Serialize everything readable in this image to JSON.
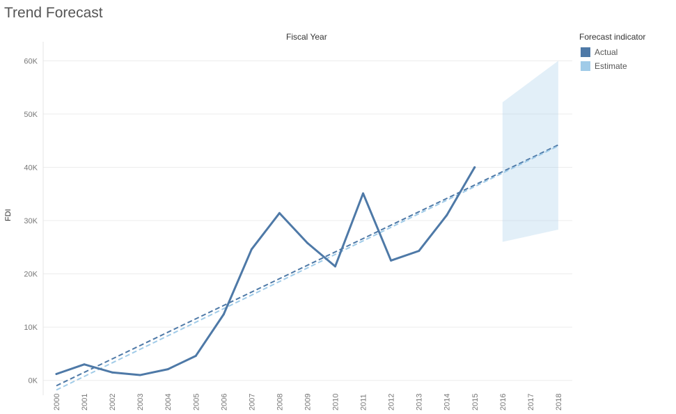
{
  "title": "Trend Forecast",
  "chart_data": {
    "type": "line",
    "header": "Fiscal Year",
    "xlabel": "",
    "ylabel": "FDI",
    "ylim": [
      -2000,
      62000
    ],
    "yticks": [
      0,
      10000,
      20000,
      30000,
      40000,
      50000,
      60000
    ],
    "ytick_labels": [
      "0K",
      "10K",
      "20K",
      "30K",
      "40K",
      "50K",
      "60K"
    ],
    "x": [
      "2000",
      "2001",
      "2002",
      "2003",
      "2004",
      "2005",
      "2006",
      "2007",
      "2008",
      "2009",
      "2010",
      "2011",
      "2012",
      "2013",
      "2014",
      "2015",
      "2016",
      "2017",
      "2018"
    ],
    "grid": true,
    "series": [
      {
        "name": "Actual",
        "color": "#4e79a7",
        "values": [
          1200,
          3000,
          1500,
          1000,
          2100,
          4600,
          12400,
          24600,
          31400,
          25800,
          21400,
          35100,
          22500,
          24300,
          31000,
          40000,
          null,
          null,
          null
        ]
      }
    ],
    "trend_lines": [
      {
        "of": "Actual",
        "color": "#4e79a7",
        "x_start": "2000",
        "y_start": -1000,
        "x_end": "2018",
        "y_end": 44200
      },
      {
        "of": "Estimate",
        "color": "#a0cbe8",
        "x_start": "2000",
        "y_start": -1800,
        "x_end": "2018",
        "y_end": 44000
      }
    ],
    "forecast_band": {
      "color": "#a0cbe8",
      "x": [
        "2016",
        "2018"
      ],
      "upper": [
        52200,
        60000
      ],
      "lower": [
        26000,
        28300
      ]
    },
    "legend": {
      "title": "Forecast indicator",
      "position": "top-right",
      "items": [
        {
          "label": "Actual",
          "color": "#4e79a7"
        },
        {
          "label": "Estimate",
          "color": "#a0cbe8"
        }
      ]
    }
  }
}
